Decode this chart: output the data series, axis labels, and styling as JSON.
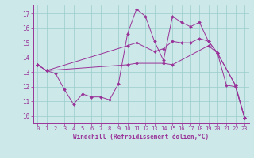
{
  "xlabel": "Windchill (Refroidissement éolien,°C)",
  "background_color": "#cce8e8",
  "grid_color": "#99cccc",
  "line_color": "#993399",
  "x_ticks": [
    0,
    1,
    2,
    3,
    4,
    5,
    6,
    7,
    8,
    9,
    10,
    11,
    12,
    13,
    14,
    15,
    16,
    17,
    18,
    19,
    20,
    21,
    22,
    23
  ],
  "y_ticks": [
    10,
    11,
    12,
    13,
    14,
    15,
    16,
    17
  ],
  "ylim": [
    9.5,
    17.6
  ],
  "xlim": [
    -0.5,
    23.5
  ],
  "line1_x": [
    0,
    1,
    2,
    3,
    4,
    5,
    6,
    7,
    8,
    9,
    10,
    11,
    12,
    13,
    14,
    15,
    16,
    17,
    18,
    19,
    20,
    21,
    22,
    23
  ],
  "line1_y": [
    13.5,
    13.1,
    12.9,
    11.8,
    10.8,
    11.5,
    11.3,
    11.3,
    11.1,
    12.2,
    15.6,
    17.3,
    16.8,
    15.1,
    13.8,
    16.8,
    16.4,
    16.1,
    16.4,
    15.1,
    14.3,
    12.1,
    12.0,
    9.9
  ],
  "line2_x": [
    0,
    1,
    10,
    11,
    13,
    14,
    15,
    16,
    17,
    18,
    19,
    20,
    22,
    23
  ],
  "line2_y": [
    13.5,
    13.1,
    14.8,
    15.0,
    14.4,
    14.6,
    15.1,
    15.0,
    15.0,
    15.3,
    15.1,
    14.3,
    12.1,
    9.9
  ],
  "line3_x": [
    0,
    1,
    10,
    11,
    14,
    15,
    19,
    20,
    22,
    23
  ],
  "line3_y": [
    13.5,
    13.1,
    13.5,
    13.6,
    13.6,
    13.5,
    14.8,
    14.3,
    12.1,
    9.9
  ]
}
